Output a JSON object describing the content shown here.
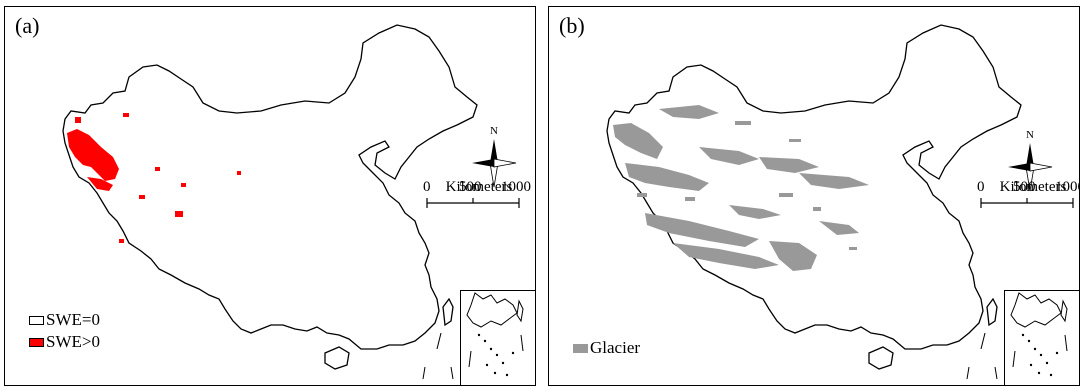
{
  "panels": [
    {
      "label": "(a)",
      "legend": [
        {
          "label": "SWE=0",
          "color": "#ffffff"
        },
        {
          "label": "SWE>0",
          "color": "#ff0000"
        }
      ]
    },
    {
      "label": "(b)",
      "legend": [
        {
          "label": "Glacier",
          "color": "#999999"
        }
      ]
    }
  ],
  "north_arrow": {
    "label": "N",
    "icon": "compass-north-arrow-icon"
  },
  "scale_bar": {
    "ticks": [
      "0",
      "500",
      "1000"
    ],
    "unit": "Kilometers"
  },
  "colors": {
    "outline": "#000000",
    "swe_positive": "#ff0000",
    "glacier": "#999999"
  }
}
